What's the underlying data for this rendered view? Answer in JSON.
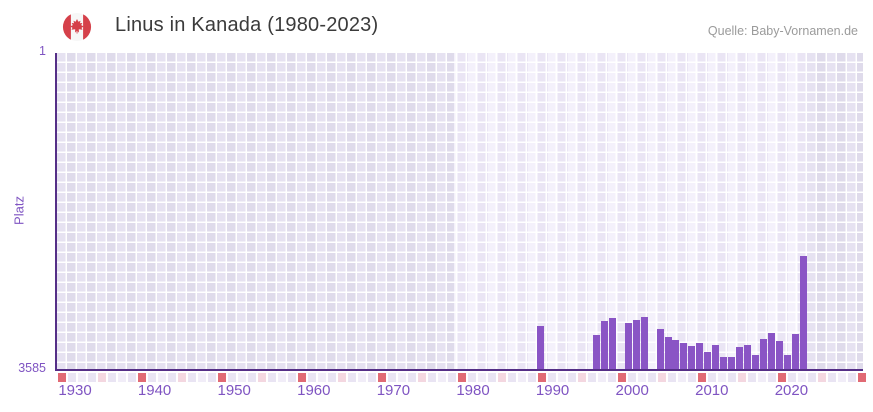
{
  "header": {
    "title": "Linus in Kanada (1980-2023)",
    "source": "Quelle: Baby-Vornamen.de",
    "flag_icon": "canada-flag-icon"
  },
  "chart_data": {
    "type": "bar",
    "title": "Linus in Kanada (1980-2023)",
    "xlabel": "",
    "ylabel": "Platz",
    "y_axis": {
      "top_label": "1",
      "bottom_label": "3585",
      "min": 1,
      "max": 3585,
      "inverted": true
    },
    "x_axis": {
      "tick_years": [
        1930,
        1940,
        1950,
        1960,
        1970,
        1980,
        1990,
        2000,
        2010,
        2020
      ],
      "tick_labels": [
        "1930",
        "1940",
        "1950",
        "1960",
        "1970",
        "1980",
        "1990",
        "2000",
        "2010",
        "2020"
      ],
      "range_start": 1930,
      "range_end": 2030,
      "decade_marker_years": [
        1930,
        1940,
        1950,
        1960,
        1970,
        1980,
        1990,
        2000,
        2010,
        2020,
        2030
      ],
      "half_decade_marker_years": [
        1935,
        1945,
        1955,
        1965,
        1975,
        1985,
        1995,
        2005,
        2015,
        2025
      ]
    },
    "highlight_range": {
      "from": 1980,
      "to": 2023
    },
    "grid": true,
    "legend": "none",
    "series": [
      {
        "name": "Linus",
        "unit": "Platz",
        "points": [
          {
            "year": 1990,
            "rank": 3097
          },
          {
            "year": 1997,
            "rank": 3199
          },
          {
            "year": 1998,
            "rank": 3040
          },
          {
            "year": 1999,
            "rank": 3006
          },
          {
            "year": 2001,
            "rank": 3063
          },
          {
            "year": 2002,
            "rank": 3029
          },
          {
            "year": 2003,
            "rank": 3000
          },
          {
            "year": 2005,
            "rank": 3131
          },
          {
            "year": 2006,
            "rank": 3222
          },
          {
            "year": 2007,
            "rank": 3256
          },
          {
            "year": 2008,
            "rank": 3290
          },
          {
            "year": 2009,
            "rank": 3324
          },
          {
            "year": 2010,
            "rank": 3290
          },
          {
            "year": 2011,
            "rank": 3392
          },
          {
            "year": 2012,
            "rank": 3313
          },
          {
            "year": 2013,
            "rank": 3449
          },
          {
            "year": 2014,
            "rank": 3449
          },
          {
            "year": 2015,
            "rank": 3335
          },
          {
            "year": 2016,
            "rank": 3313
          },
          {
            "year": 2017,
            "rank": 3426
          },
          {
            "year": 2018,
            "rank": 3244
          },
          {
            "year": 2019,
            "rank": 3177
          },
          {
            "year": 2020,
            "rank": 3267
          },
          {
            "year": 2021,
            "rank": 3426
          },
          {
            "year": 2022,
            "rank": 3188
          },
          {
            "year": 2023,
            "rank": 2303
          }
        ]
      }
    ],
    "colors": {
      "bar": "#8a55c5",
      "axis_line": "#552f87",
      "tick_text": "#7f54c2",
      "title_text": "#3b3b3b",
      "source_text": "#9b9b9b",
      "decade_marker": "#e16a74",
      "half_decade_marker": "#f4d7e0",
      "flag_red": "#d5404a"
    }
  }
}
